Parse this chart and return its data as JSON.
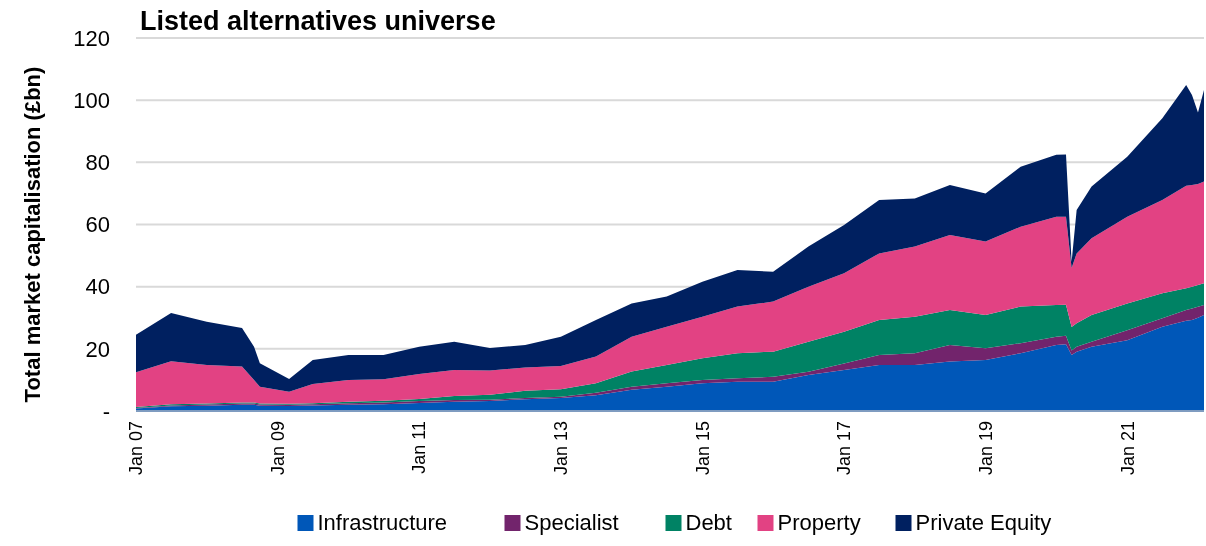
{
  "chart_data": {
    "type": "area",
    "stacked": true,
    "title": "Listed alternatives universe",
    "ylabel": "Total market capitalisation (£bn)",
    "x": [
      "2007-01",
      "2007-07",
      "2008-01",
      "2008-07",
      "2008-09",
      "2008-10",
      "2009-03",
      "2009-07",
      "2010-01",
      "2010-07",
      "2011-01",
      "2011-07",
      "2012-01",
      "2012-07",
      "2013-01",
      "2013-07",
      "2014-01",
      "2014-07",
      "2015-01",
      "2015-07",
      "2016-01",
      "2016-07",
      "2017-01",
      "2017-07",
      "2018-01",
      "2018-07",
      "2019-01",
      "2019-07",
      "2020-01",
      "2020-02-20",
      "2020-03-20",
      "2020-04-15",
      "2020-07",
      "2021-01",
      "2021-07",
      "2021-11",
      "2021-12",
      "2022-01",
      "2022-02"
    ],
    "series": [
      {
        "name": "Infrastructure",
        "color": "#0057b8",
        "values": [
          0.8,
          1.5,
          1.7,
          2.0,
          2.0,
          1.7,
          1.6,
          1.8,
          2.0,
          2.2,
          2.6,
          3.0,
          3.2,
          3.8,
          4.2,
          5.1,
          6.8,
          7.8,
          8.9,
          9.4,
          9.4,
          11.6,
          13.2,
          14.8,
          14.8,
          15.9,
          16.4,
          18.6,
          21.2,
          21.5,
          18,
          19.1,
          20.7,
          22.8,
          27.1,
          29,
          29.3,
          30,
          30.9
        ]
      },
      {
        "name": "Specialist",
        "color": "#72246c",
        "values": [
          0.2,
          0.3,
          0.4,
          0.4,
          0.4,
          0.4,
          0.4,
          0.4,
          0.5,
          0.5,
          0.6,
          0.5,
          0.4,
          0.4,
          0.4,
          0.8,
          1.0,
          1.1,
          1.1,
          1.1,
          1.6,
          1.0,
          2.1,
          3.2,
          3.8,
          5.3,
          3.8,
          3.2,
          2.7,
          2.7,
          1.5,
          1.6,
          1.6,
          3.2,
          2.7,
          3.5,
          3.7,
          3.5,
          3.2
        ]
      },
      {
        "name": "Debt",
        "color": "#008264",
        "values": [
          0.3,
          0.4,
          0.3,
          0.3,
          0.3,
          0.3,
          0.3,
          0.3,
          0.5,
          0.6,
          0.7,
          1.3,
          1.6,
          2.3,
          2.4,
          3.0,
          4.9,
          5.9,
          7.0,
          8.1,
          8.1,
          9.7,
          10.2,
          11.3,
          11.7,
          11.3,
          10.7,
          11.8,
          10.2,
          10,
          7.5,
          7.5,
          8.6,
          8.6,
          8.1,
          7,
          7,
          7,
          7
        ]
      },
      {
        "name": "Property",
        "color": "#e24283",
        "values": [
          11.2,
          13.8,
          12.4,
          11.6,
          7.3,
          5.4,
          3.9,
          6.2,
          7.0,
          6.9,
          8.0,
          8.4,
          7.8,
          7.5,
          7.5,
          8.6,
          11.2,
          12.3,
          13.3,
          15.0,
          16.1,
          17.7,
          18.8,
          21.4,
          22.6,
          24.1,
          23.6,
          25.7,
          28.4,
          28.3,
          19,
          22.5,
          24.7,
          27.9,
          30,
          33,
          32.7,
          32.5,
          32.7
        ]
      },
      {
        "name": "Private Equity",
        "color": "#002060",
        "values": [
          12,
          15.5,
          13.9,
          12.4,
          10.7,
          7.6,
          4.1,
          7.7,
          8,
          7.8,
          8.8,
          9.1,
          7.3,
          7.2,
          9.4,
          11.8,
          10.7,
          9.7,
          11.3,
          11.8,
          9.6,
          12.9,
          15.5,
          17.2,
          15.5,
          16.1,
          15.5,
          19.3,
          19.9,
          20,
          2,
          14,
          16.6,
          19.3,
          26.3,
          32.4,
          29,
          23,
          29.5
        ]
      }
    ],
    "xlim": [
      "2007-01",
      "2022-02"
    ],
    "xticks": [
      {
        "value": "2007-01",
        "label": "Jan 07"
      },
      {
        "value": "2009-01",
        "label": "Jan 09"
      },
      {
        "value": "2011-01",
        "label": "Jan 11"
      },
      {
        "value": "2013-01",
        "label": "Jan 13"
      },
      {
        "value": "2015-01",
        "label": "Jan 15"
      },
      {
        "value": "2017-01",
        "label": "Jan 17"
      },
      {
        "value": "2019-01",
        "label": "Jan 19"
      },
      {
        "value": "2021-01",
        "label": "Jan 21"
      }
    ],
    "ylim": [
      0,
      120
    ],
    "yticks": [
      {
        "value": 0,
        "label": "-"
      },
      20,
      40,
      60,
      80,
      100,
      120
    ],
    "grid": "y",
    "legend": "bottom"
  }
}
